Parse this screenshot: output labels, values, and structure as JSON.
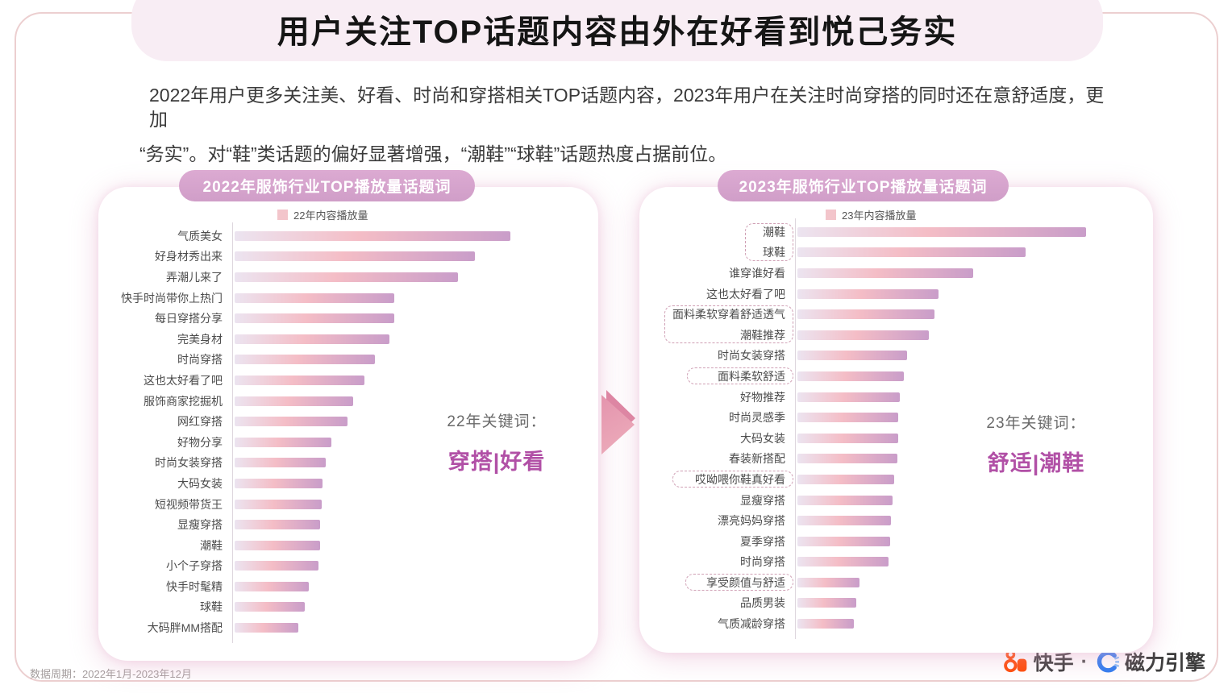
{
  "page": {
    "title": "用户关注TOP话题内容由外在好看到悦己务实",
    "description_line1": "2022年用户更多关注美、好看、时尚和穿搭相关TOP话题内容，2023年用户在关注时尚穿搭的同时还在意舒适度，更加",
    "description_line2": "“务实”。对“鞋”类话题的偏好显著增强，“潮鞋”“球鞋”话题热度占据前位。",
    "footer_note": "数据周期：2022年1月-2023年12月",
    "brand": {
      "kuaishou": "快手",
      "separator": "·",
      "engine": "磁力引擎"
    }
  },
  "colors": {
    "banner_bg": "#f8edf4",
    "pill_bg": "#d5a3cb",
    "bar_gradient": [
      "#ece4f0",
      "#f4bdc6",
      "#c99dc9"
    ],
    "legend_swatch": "#f3c5cb",
    "keyword_text": "#b150a6",
    "kuaishou_orange": "#ff4a06",
    "engine_blue": "#2d7bf0",
    "frame_border": "#eccfd0"
  },
  "chart_data": [
    {
      "type": "bar",
      "orientation": "horizontal",
      "title": "2022年服饰行业TOP播放量话题词",
      "legend": "22年内容播放量",
      "annotation_label": "22年关键词：",
      "annotation_keyword": "穿搭|好看",
      "xlabel": "",
      "ylabel": "",
      "value_note": "relative play volume, max topic = 100",
      "xlim": [
        0,
        100
      ],
      "grid": false,
      "categories": [
        "气质美女",
        "好身材秀出来",
        "弄潮儿来了",
        "快手时尚带你上热门",
        "每日穿搭分享",
        "完美身材",
        "时尚穿搭",
        "这也太好看了吧",
        "服饰商家挖掘机",
        "网红穿搭",
        "好物分享",
        "时尚女装穿搭",
        "大码女装",
        "短视频带货王",
        "显瘦穿搭",
        "潮鞋",
        "小个子穿搭",
        "快手时髦精",
        "球鞋",
        "大码胖MM搭配"
      ],
      "values": [
        100,
        87,
        81,
        58,
        58,
        56,
        51,
        47,
        43,
        41,
        35,
        33,
        32,
        31.5,
        31,
        31,
        30.5,
        27,
        25.5,
        23
      ],
      "highlight_boxes": []
    },
    {
      "type": "bar",
      "orientation": "horizontal",
      "title": "2023年服饰行业TOP播放量话题词",
      "legend": "23年内容播放量",
      "annotation_label": "23年关键词：",
      "annotation_keyword": "舒适|潮鞋",
      "xlabel": "",
      "ylabel": "",
      "value_note": "relative play volume, max topic = 100",
      "xlim": [
        0,
        100
      ],
      "grid": false,
      "categories": [
        "潮鞋",
        "球鞋",
        "谁穿谁好看",
        "这也太好看了吧",
        "面料柔软穿着舒适透气",
        "潮鞋推荐",
        "时尚女装穿搭",
        "面料柔软舒适",
        "好物推荐",
        "时尚灵感季",
        "大码女装",
        "春装新搭配",
        "哎呦喂你鞋真好看",
        "显瘦穿搭",
        "漂亮妈妈穿搭",
        "夏季穿搭",
        "时尚穿搭",
        "享受颜值与舒适",
        "品质男装",
        "气质减龄穿搭"
      ],
      "values": [
        100,
        79,
        61,
        49,
        47.5,
        45.5,
        38,
        37,
        35.5,
        35,
        35,
        34.5,
        33.5,
        33,
        32.5,
        32,
        31.5,
        21.5,
        20.5,
        19.5
      ],
      "highlight_boxes": [
        {
          "start": 0,
          "span": 2
        },
        {
          "start": 4,
          "span": 2
        },
        {
          "start": 7,
          "span": 1
        },
        {
          "start": 12,
          "span": 1
        },
        {
          "start": 17,
          "span": 1
        }
      ]
    }
  ]
}
